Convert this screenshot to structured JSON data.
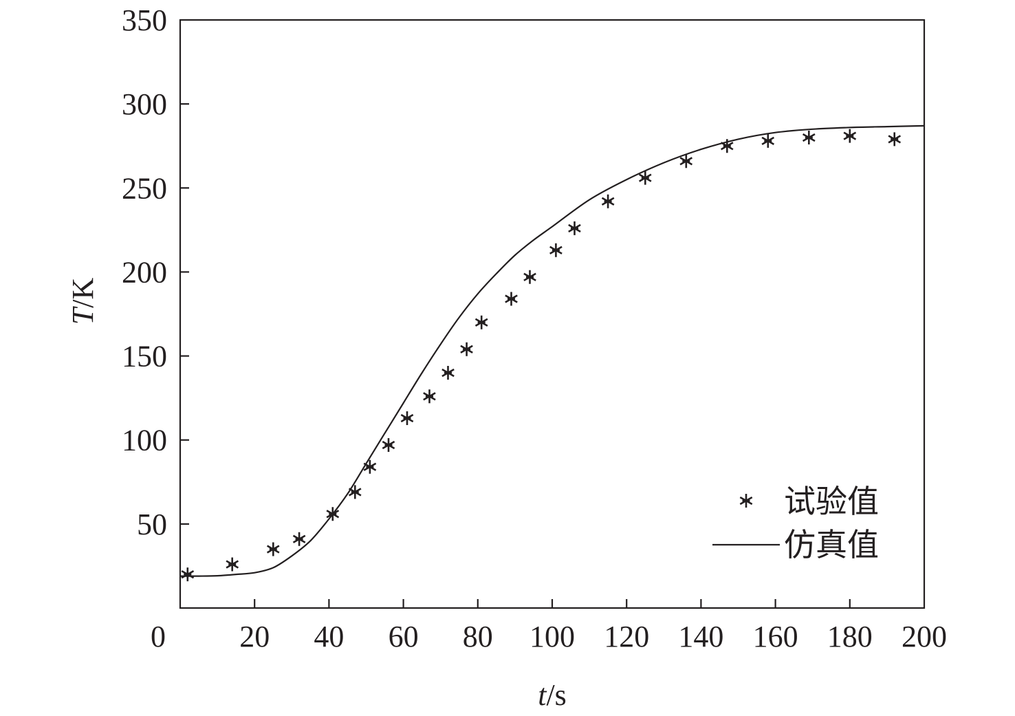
{
  "chart_data": {
    "type": "line",
    "title": "",
    "xlabel_var": "t",
    "xlabel_unit": "/s",
    "ylabel_var": "T",
    "ylabel_unit": "/K",
    "xlim": [
      0,
      200
    ],
    "ylim": [
      0,
      350
    ],
    "x_ticks": [
      0,
      20,
      40,
      60,
      80,
      100,
      120,
      140,
      160,
      180,
      200
    ],
    "y_ticks": [
      50,
      100,
      150,
      200,
      250,
      300,
      350
    ],
    "grid": false,
    "legend_position": "bottom-right",
    "series": [
      {
        "name": "试验值",
        "type": "scatter",
        "marker": "asterisk",
        "color": "#231f20",
        "x": [
          2,
          14,
          25,
          32,
          41,
          47,
          51,
          56,
          61,
          67,
          72,
          77,
          81,
          89,
          94,
          101,
          106,
          115,
          125,
          136,
          147,
          158,
          169,
          180,
          192
        ],
        "y": [
          20,
          26,
          35,
          41,
          56,
          69,
          84,
          97,
          113,
          126,
          140,
          154,
          170,
          184,
          197,
          213,
          226,
          242,
          256,
          266,
          275,
          278,
          280,
          281,
          279
        ]
      },
      {
        "name": "仿真值",
        "type": "line",
        "color": "#231f20",
        "x": [
          0,
          5,
          10,
          15,
          20,
          25,
          30,
          35,
          40,
          45,
          50,
          55,
          60,
          65,
          70,
          75,
          80,
          85,
          90,
          95,
          100,
          110,
          120,
          130,
          140,
          150,
          160,
          170,
          180,
          190,
          200
        ],
        "y": [
          19,
          19,
          19.2,
          20,
          21,
          24,
          31,
          40,
          53,
          68,
          86,
          104,
          122,
          140,
          157,
          173,
          187,
          199,
          210,
          219,
          227,
          243,
          255,
          265,
          273,
          279,
          283,
          285,
          286,
          286.5,
          287
        ]
      }
    ]
  }
}
